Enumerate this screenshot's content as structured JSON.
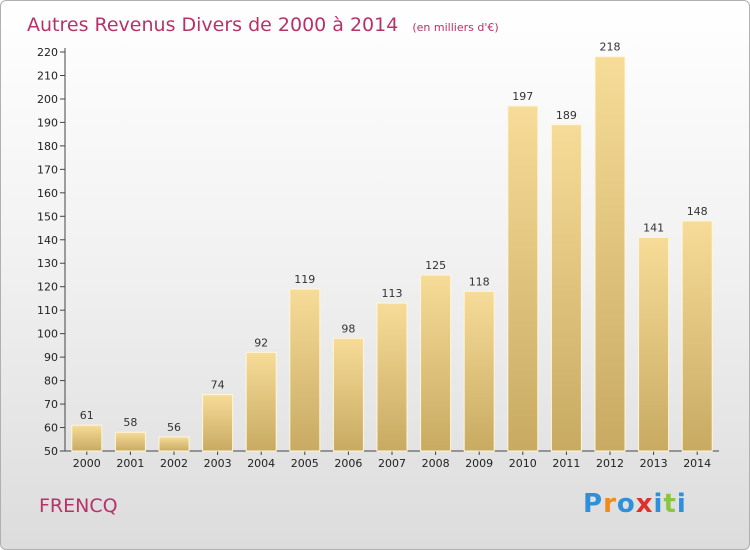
{
  "chart_data": {
    "type": "bar",
    "title": "Autres Revenus Divers de 2000 à 2014",
    "subtitle": "(en milliers d'€)",
    "categories": [
      "2000",
      "2001",
      "2002",
      "2003",
      "2004",
      "2005",
      "2006",
      "2007",
      "2008",
      "2009",
      "2010",
      "2011",
      "2012",
      "2013",
      "2014"
    ],
    "values": [
      61,
      58,
      56,
      74,
      92,
      119,
      98,
      113,
      125,
      118,
      197,
      189,
      218,
      141,
      148
    ],
    "ylim": [
      50,
      220
    ],
    "ytick_step": 10,
    "grid": false,
    "bar_color": "#e6c77d"
  },
  "footer": {
    "commune": "FRENCQ",
    "logo_letters": [
      {
        "ch": "P",
        "color": "#2f8fd8"
      },
      {
        "ch": "r",
        "color": "#f08a1c"
      },
      {
        "ch": "o",
        "color": "#2f8fd8"
      },
      {
        "ch": "x",
        "color": "#e0302c"
      },
      {
        "ch": "i",
        "color": "#2f8fd8"
      },
      {
        "ch": "t",
        "color": "#8cc63f"
      },
      {
        "ch": "i",
        "color": "#2f8fd8"
      }
    ]
  }
}
